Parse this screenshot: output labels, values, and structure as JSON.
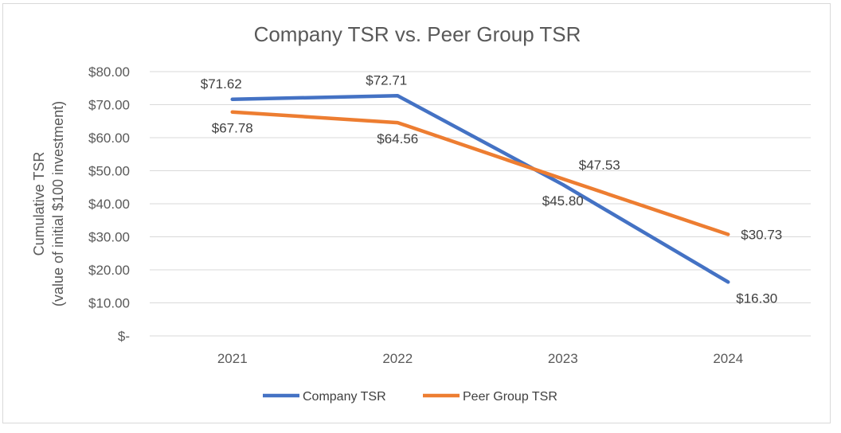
{
  "chart_data": {
    "type": "line",
    "title": "Company TSR vs. Peer Group TSR",
    "xlabel": "",
    "ylabel_line1": "Cumulative TSR",
    "ylabel_line2": "(value of initial $100 investment)",
    "categories": [
      "2021",
      "2022",
      "2023",
      "2024"
    ],
    "ylim": [
      0,
      80
    ],
    "y_ticks": [
      {
        "value": 80,
        "label": "$80.00"
      },
      {
        "value": 70,
        "label": "$70.00"
      },
      {
        "value": 60,
        "label": "$60.00"
      },
      {
        "value": 50,
        "label": "$50.00"
      },
      {
        "value": 40,
        "label": "$40.00"
      },
      {
        "value": 30,
        "label": "$30.00"
      },
      {
        "value": 20,
        "label": "$20.00"
      },
      {
        "value": 10,
        "label": "$10.00"
      },
      {
        "value": 0,
        "label": "$-"
      }
    ],
    "grid": true,
    "legend_position": "bottom",
    "series": [
      {
        "name": "Company TSR",
        "color": "#4472c4",
        "values": [
          71.62,
          72.71,
          45.8,
          16.3
        ],
        "labels": [
          "$71.62",
          "$72.71",
          "$45.80",
          "$16.30"
        ],
        "label_positions": [
          "above",
          "above",
          "below",
          "below-right"
        ]
      },
      {
        "name": "Peer Group TSR",
        "color": "#ed7d31",
        "values": [
          67.78,
          64.56,
          47.53,
          30.73
        ],
        "labels": [
          "$67.78",
          "$64.56",
          "$47.53",
          "$30.73"
        ],
        "label_positions": [
          "below",
          "below",
          "above-right",
          "right"
        ]
      }
    ]
  }
}
